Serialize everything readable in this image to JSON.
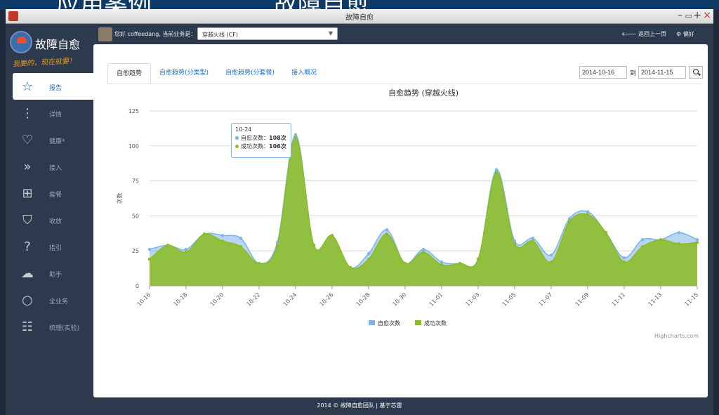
{
  "window": {
    "title": "故障自愈",
    "banner_left": "应用案例",
    "banner_right": "故障自愈"
  },
  "sidebar": {
    "brand": "故障自愈",
    "slogan": "我要的，现在就要！",
    "items": [
      {
        "label": "报告",
        "icon": "star-icon",
        "active": true
      },
      {
        "label": "详情",
        "icon": "dots-vertical-icon"
      },
      {
        "label": "健康*",
        "icon": "heart-icon"
      },
      {
        "label": "接入",
        "icon": "double-chevron-right-icon"
      },
      {
        "label": "套餐",
        "icon": "plus-square-icon"
      },
      {
        "label": "收放",
        "icon": "shield-icon"
      },
      {
        "label": "指引",
        "icon": "question-icon"
      },
      {
        "label": "助手",
        "icon": "chat-icon"
      },
      {
        "label": "全业务",
        "icon": "circle-icon"
      },
      {
        "label": "梳理(实验)",
        "icon": "sitemap-icon"
      }
    ]
  },
  "topbar": {
    "greeting": "您好 coffeedang, 当前业务是：",
    "business": "穿越火线 (CF)",
    "back_label": "返回上一页",
    "pref_label": "偏好"
  },
  "tabs": [
    "自愈趋势",
    "自愈趋势(分类型)",
    "自愈趋势(分套餐)",
    "接入概况"
  ],
  "date_range": {
    "from": "2014-10-16",
    "sep": "到",
    "to": "2014-11-15"
  },
  "tooltip": {
    "date": "10-24",
    "s1_label": "自愈次数：",
    "s1_value": "108次",
    "s2_label": "成功次数：",
    "s2_value": "106次"
  },
  "credit": "Highcharts.com",
  "footer": "2014 © 故障自愈团队 | 基于芯雷",
  "colors": {
    "series1": "#7cb5ec",
    "series2": "#8bbc21",
    "accent": "#1a73c8",
    "sidebar": "#2d3a4e"
  },
  "chart_data": {
    "type": "area",
    "title": "自愈趋势 (穿越火线)",
    "ylabel": "次数",
    "ylim": [
      0,
      125
    ],
    "yticks": [
      0,
      25,
      50,
      75,
      100,
      125
    ],
    "x": [
      "10-16",
      "10-17",
      "10-18",
      "10-19",
      "10-20",
      "10-21",
      "10-22",
      "10-23",
      "10-24",
      "10-25",
      "10-26",
      "10-27",
      "10-28",
      "10-29",
      "10-30",
      "10-31",
      "11-01",
      "11-02",
      "11-03",
      "11-04",
      "11-05",
      "11-06",
      "11-07",
      "11-08",
      "11-09",
      "11-10",
      "11-11",
      "11-12",
      "11-13",
      "11-14",
      "11-15"
    ],
    "xtick_labels": [
      "10-16",
      "10-18",
      "10-20",
      "10-22",
      "10-24",
      "10-26",
      "10-28",
      "10-30",
      "11-01",
      "11-03",
      "11-05",
      "11-07",
      "11-09",
      "11-11",
      "11-13",
      "11-15"
    ],
    "series": [
      {
        "name": "自愈次数",
        "values": [
          26,
          29,
          26,
          37,
          36,
          34,
          16,
          31,
          108,
          29,
          36,
          13,
          23,
          40,
          16,
          26,
          17,
          16,
          19,
          83,
          32,
          34,
          22,
          48,
          53,
          38,
          20,
          33,
          33,
          38,
          33
        ]
      },
      {
        "name": "成功次数",
        "values": [
          19,
          29,
          24,
          37,
          32,
          28,
          16,
          29,
          106,
          29,
          36,
          13,
          19,
          37,
          16,
          24,
          15,
          16,
          19,
          81,
          30,
          32,
          17,
          46,
          51,
          38,
          17,
          28,
          33,
          30,
          31
        ]
      }
    ],
    "legend": "bottom-center",
    "grid": true
  }
}
